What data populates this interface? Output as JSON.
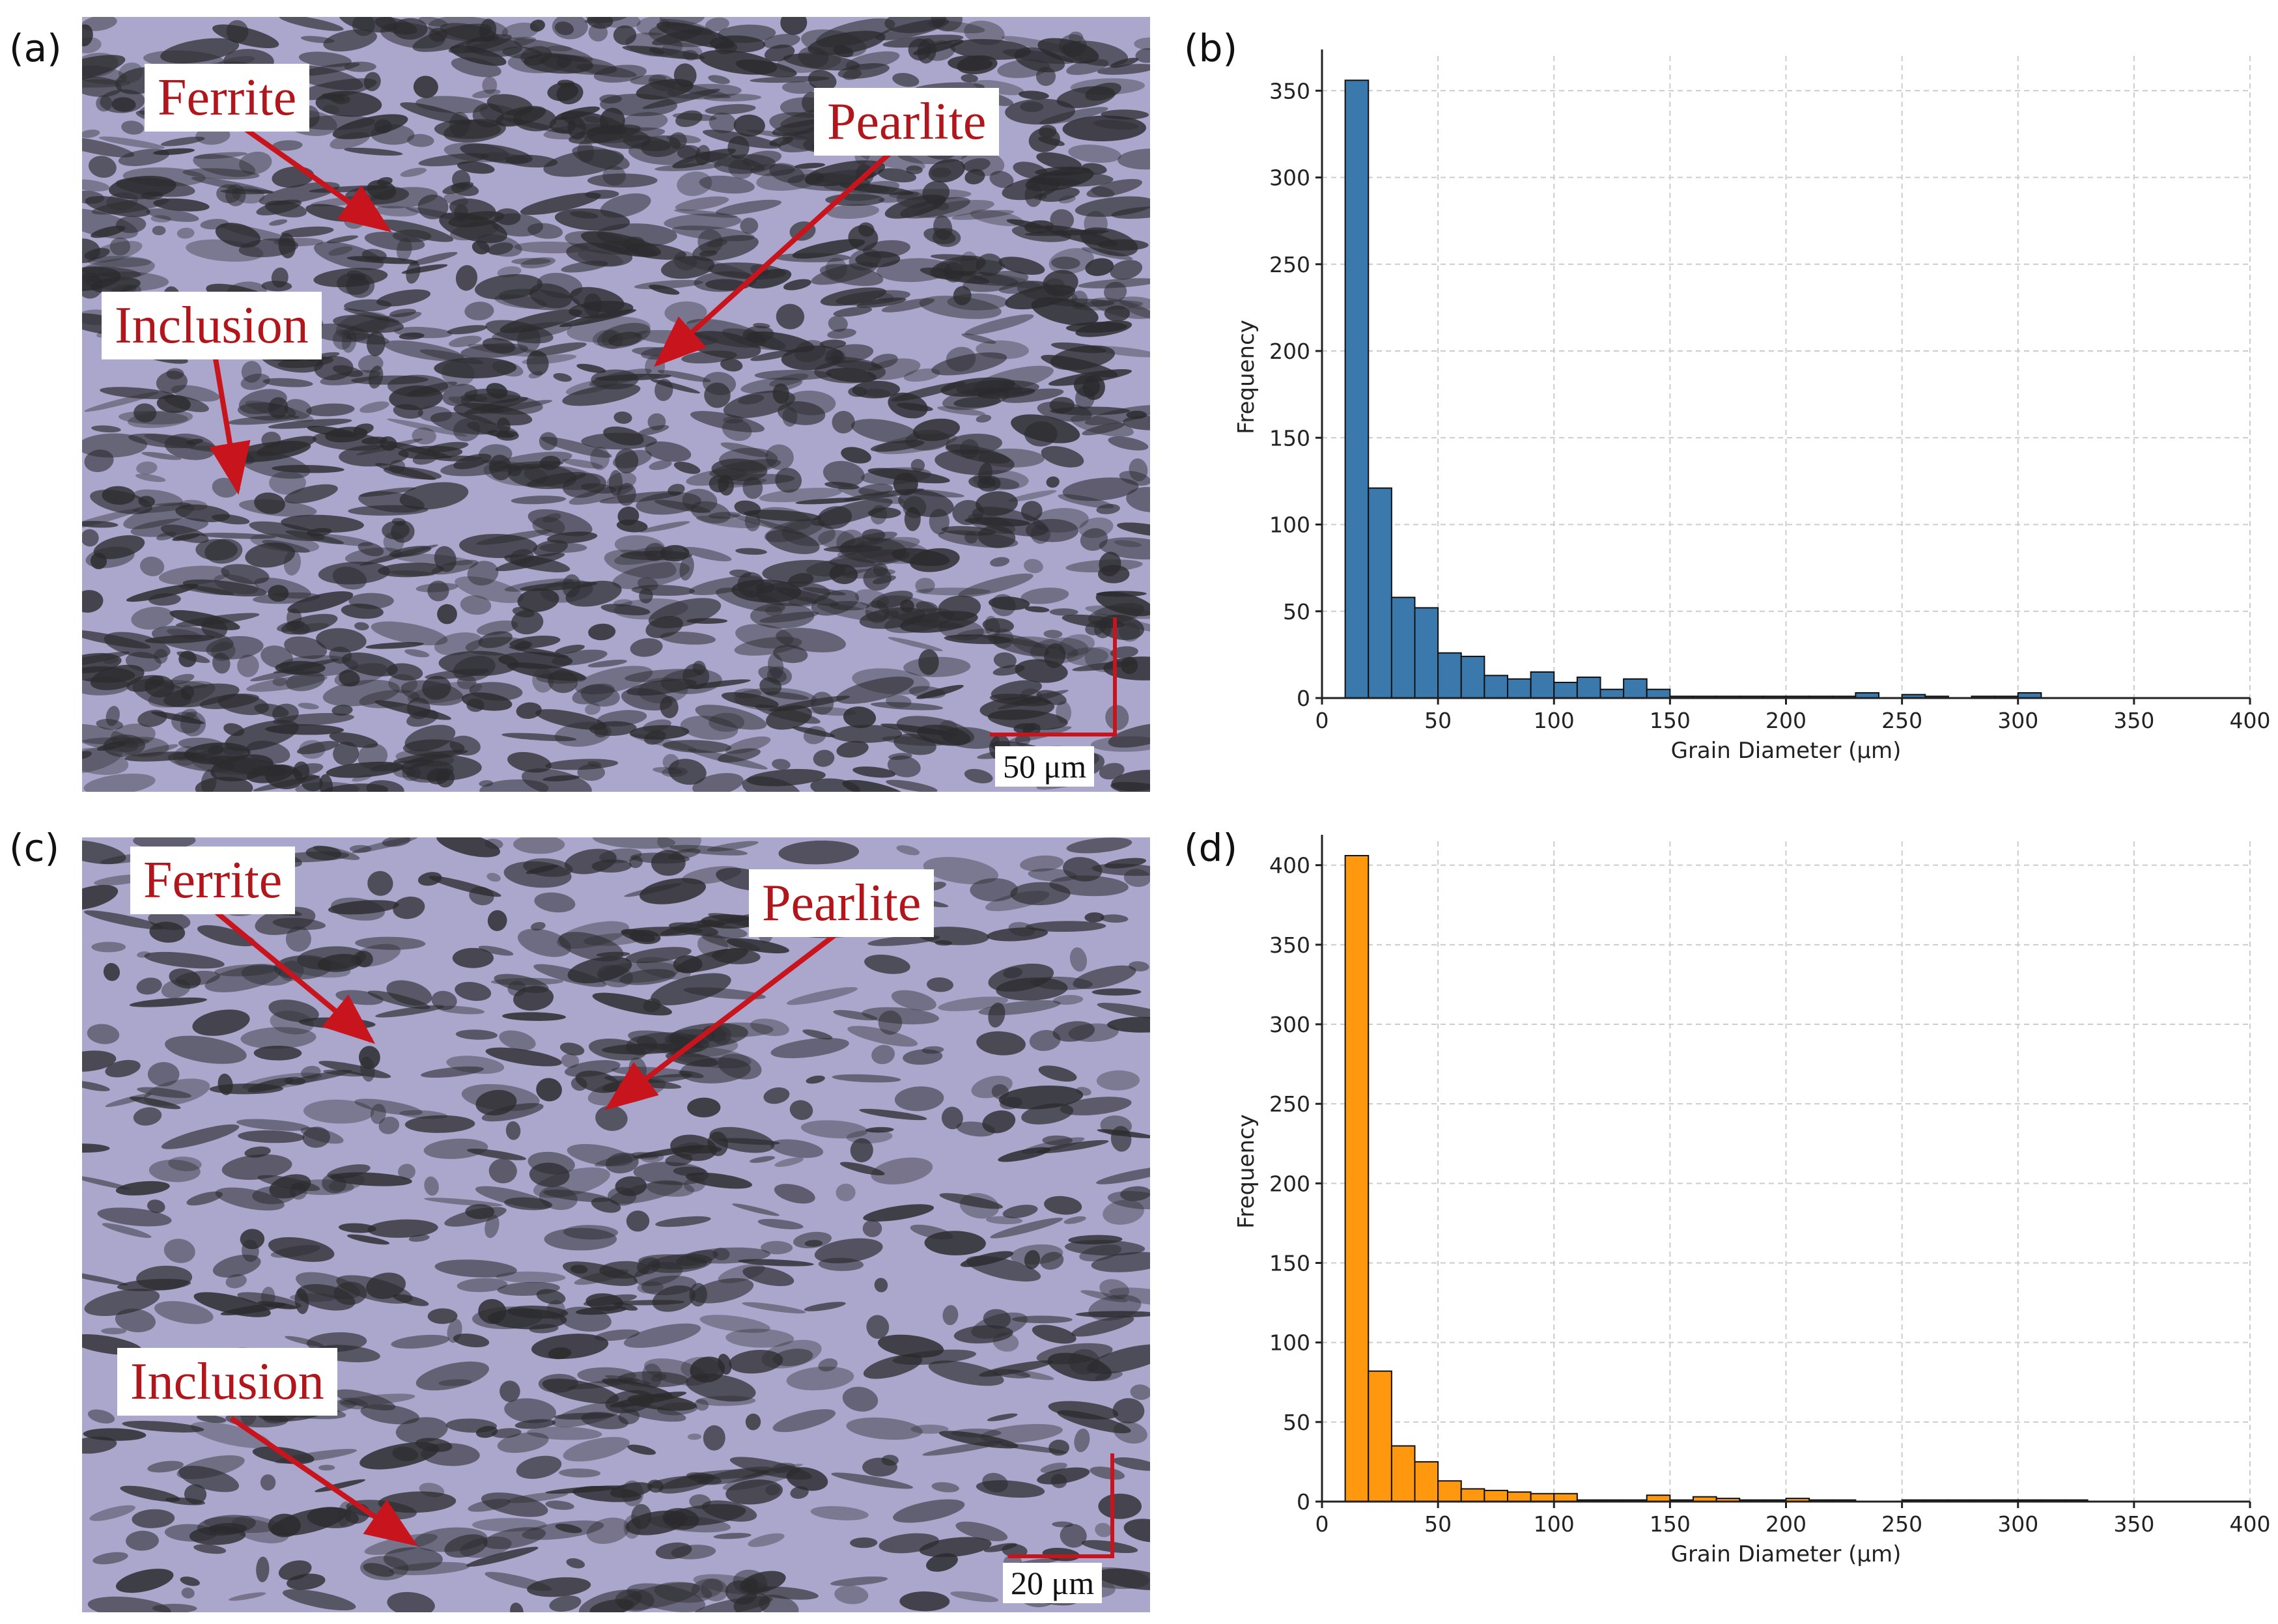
{
  "panels": {
    "a": {
      "letter": "(a)",
      "labels": {
        "ferrite": "Ferrite",
        "pearlite": "Pearlite",
        "inclusion": "Inclusion"
      },
      "scale_bar": "50 μm"
    },
    "b": {
      "letter": "(b)"
    },
    "c": {
      "letter": "(c)",
      "labels": {
        "ferrite": "Ferrite",
        "pearlite": "Pearlite",
        "inclusion": "Inclusion"
      },
      "scale_bar": "20 μm"
    },
    "d": {
      "letter": "(d)"
    }
  },
  "colors": {
    "micrograph_bg": "#aaa6cc",
    "grain_dark": "#2b2b2e",
    "annotation_red": "#c8141c",
    "label_text": "#b0161b",
    "bar_blue": "#3b79ad",
    "bar_orange": "#ff980f",
    "bar_edge": "#111111",
    "grid": "#cccccc"
  },
  "chart_data": [
    {
      "type": "bar",
      "panel": "b",
      "xlabel": "Grain Diameter (μm)",
      "ylabel": "Frequency",
      "xlim": [
        0,
        400
      ],
      "ylim": [
        0,
        370
      ],
      "xticks": [
        0,
        50,
        100,
        150,
        200,
        250,
        300,
        350,
        400
      ],
      "yticks": [
        0,
        50,
        100,
        150,
        200,
        250,
        300,
        350
      ],
      "grid": true,
      "color": "#3b79ad",
      "bin_width": 10,
      "bins_start": [
        10,
        20,
        30,
        40,
        50,
        60,
        70,
        80,
        90,
        100,
        110,
        120,
        130,
        140,
        150,
        160,
        170,
        180,
        190,
        200,
        210,
        220,
        230,
        240,
        250,
        260,
        270,
        280,
        290,
        300
      ],
      "values": [
        356,
        121,
        58,
        52,
        26,
        24,
        13,
        11,
        15,
        9,
        12,
        5,
        11,
        5,
        1,
        1,
        1,
        1,
        1,
        1,
        1,
        1,
        3,
        0,
        2,
        1,
        0,
        1,
        1,
        3
      ]
    },
    {
      "type": "bar",
      "panel": "d",
      "xlabel": "Grain Diameter (μm)",
      "ylabel": "Frequency",
      "xlim": [
        0,
        400
      ],
      "ylim": [
        0,
        415
      ],
      "xticks": [
        0,
        50,
        100,
        150,
        200,
        250,
        300,
        350,
        400
      ],
      "yticks": [
        0,
        50,
        100,
        150,
        200,
        250,
        300,
        350,
        400
      ],
      "grid": true,
      "color": "#ff980f",
      "bin_width": 10,
      "bins_start": [
        10,
        20,
        30,
        40,
        50,
        60,
        70,
        80,
        90,
        100,
        110,
        120,
        130,
        140,
        150,
        160,
        170,
        180,
        190,
        200,
        210,
        220,
        230,
        240,
        250,
        260,
        270,
        280,
        290,
        300,
        310,
        320
      ],
      "values": [
        406,
        82,
        35,
        25,
        13,
        8,
        7,
        6,
        5,
        5,
        1,
        1,
        1,
        4,
        1,
        3,
        2,
        1,
        1,
        2,
        1,
        1,
        0,
        0,
        1,
        1,
        1,
        1,
        1,
        1,
        1,
        1
      ]
    }
  ]
}
